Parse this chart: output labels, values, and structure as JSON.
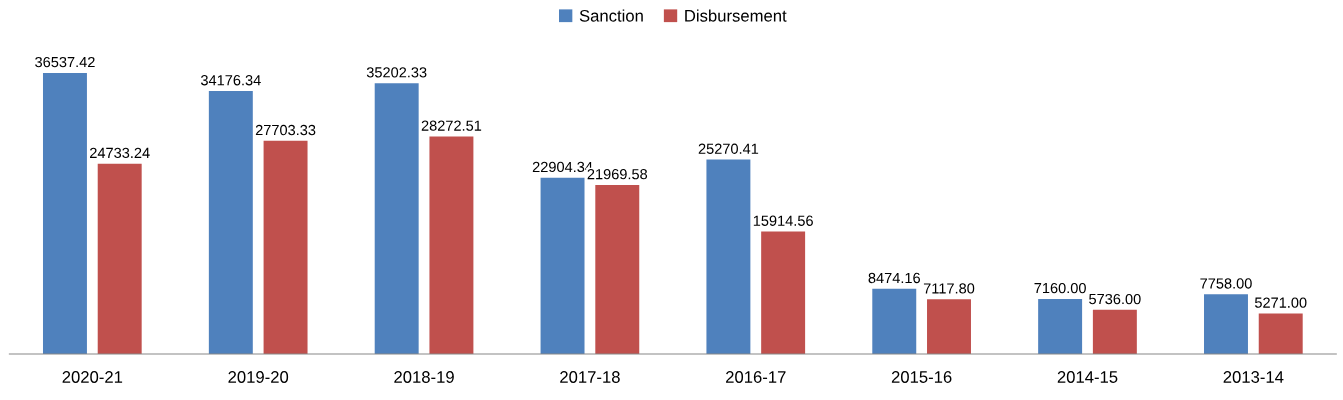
{
  "chart_data": {
    "type": "bar",
    "categories": [
      "2020-21",
      "2019-20",
      "2018-19",
      "2017-18",
      "2016-17",
      "2015-16",
      "2014-15",
      "2013-14"
    ],
    "series": [
      {
        "name": "Sanction",
        "color": "#4f81bd",
        "values": [
          36537.42,
          34176.34,
          35202.33,
          22904.34,
          25270.41,
          8474.16,
          7160.0,
          7758.0
        ],
        "value_labels": [
          "36537.42",
          "34176.34",
          "35202.33",
          "22904.34",
          "25270.41",
          "8474.16",
          "7160.00",
          "7758.00"
        ]
      },
      {
        "name": "Disbursement",
        "color": "#c0504d",
        "values": [
          24733.24,
          27703.33,
          28272.51,
          21969.58,
          15914.56,
          7117.8,
          5736.0,
          5271.0
        ],
        "value_labels": [
          "24733.24",
          "27703.33",
          "28272.51",
          "21969.58",
          "15914.56",
          "7117.80",
          "5736.00",
          "5271.00"
        ]
      }
    ],
    "legend": "top",
    "grid": false
  }
}
